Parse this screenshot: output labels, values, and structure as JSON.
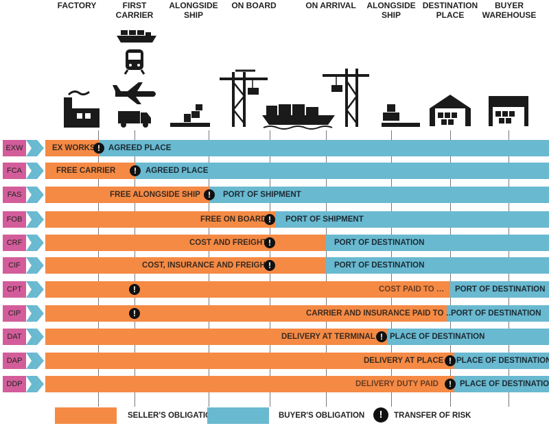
{
  "columns": [
    {
      "id": "factory",
      "label": "FACTORY"
    },
    {
      "id": "first_carrier",
      "label": "FIRST\nCARRIER"
    },
    {
      "id": "alongside_ship_1",
      "label": "ALONGSIDE\nSHIP"
    },
    {
      "id": "on_board",
      "label": "ON BOARD"
    },
    {
      "id": "on_arrival",
      "label": "ON ARRIVAL"
    },
    {
      "id": "alongside_ship_2",
      "label": "ALONGSIDE\nSHIP"
    },
    {
      "id": "destination_place",
      "label": "DESTINATION\nPLACE"
    },
    {
      "id": "buyer_warehouse",
      "label": "BUYER\nWAREHOUSE"
    }
  ],
  "terms": [
    {
      "code": "EXW",
      "seller_text": "EX WORKS",
      "buyer_text": "AGREED PLACE"
    },
    {
      "code": "FCA",
      "seller_text": "FREE CARRIER",
      "buyer_text": "AGREED PLACE"
    },
    {
      "code": "FAS",
      "seller_text": "FREE ALONGSIDE SHIP",
      "buyer_text": "PORT OF SHIPMENT"
    },
    {
      "code": "FOB",
      "seller_text": "FREE ON BOARD",
      "buyer_text": "PORT OF SHIPMENT"
    },
    {
      "code": "CRF",
      "seller_text": "COST AND FREIGHT",
      "buyer_text": "PORT OF DESTINATION"
    },
    {
      "code": "CIF",
      "seller_text": "COST, INSURANCE AND FREIGHT",
      "buyer_text": "PORT OF DESTINATION"
    },
    {
      "code": "CPT",
      "seller_text": "COST PAID TO …",
      "buyer_text": "PORT OF DESTINATION"
    },
    {
      "code": "CIP",
      "seller_text": "CARRIER AND INSURANCE PAID TO …",
      "buyer_text": "PORT OF DESTINATION"
    },
    {
      "code": "DAT",
      "seller_text": "DELIVERY AT TERMINAL",
      "buyer_text": "PLACE OF DESTINATION"
    },
    {
      "code": "DAP",
      "seller_text": "DELIVERY AT PLACE",
      "buyer_text": "PLACE OF DESTINATION"
    },
    {
      "code": "DDP",
      "seller_text": "DELIVERY DUTY PAID",
      "buyer_text": "PLACE OF DESTINATION"
    }
  ],
  "risk_symbol": "!",
  "legend": {
    "seller": "SELLER'S OBLIGATION",
    "buyer": "BUYER'S OBLIGATION",
    "risk": "TRANSFER OF RISK"
  },
  "colors": {
    "seller": "#f58a45",
    "buyer": "#69b9d0",
    "code": "#d35d9a",
    "chevron": "#69b9d0",
    "icon": "#1a1a1a"
  }
}
